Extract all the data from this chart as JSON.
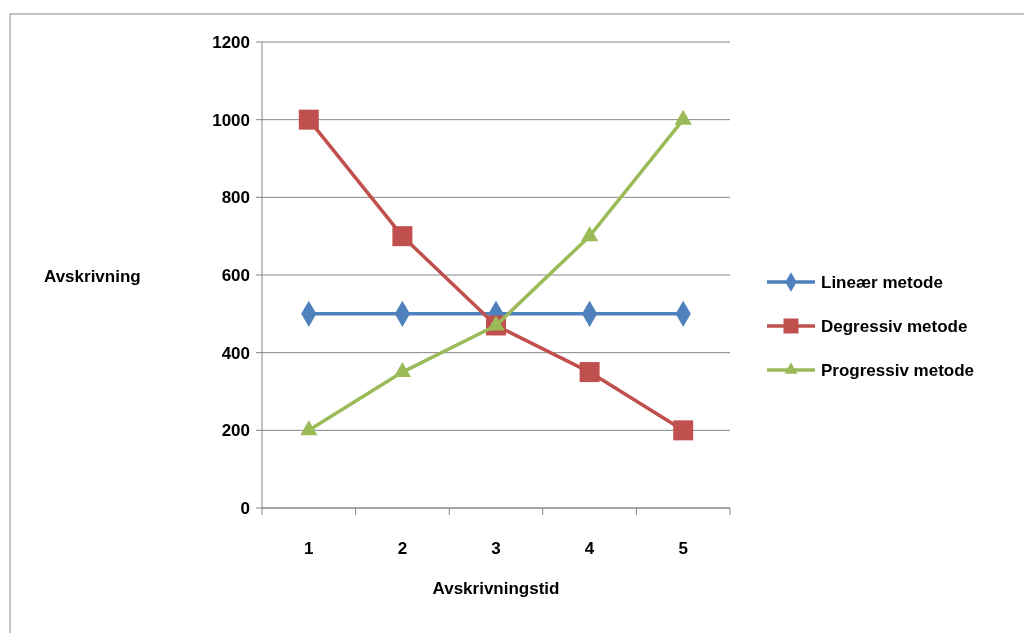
{
  "chart_data": {
    "type": "line",
    "xlabel": "Avskrivningstid",
    "ylabel": "Avskrivning",
    "categories": [
      "1",
      "2",
      "3",
      "4",
      "5"
    ],
    "series": [
      {
        "name": "Lineær metode",
        "color": "#4f81bd",
        "values": [
          500,
          500,
          500,
          500,
          500
        ],
        "marker": "diamond"
      },
      {
        "name": "Degressiv metode",
        "color": "#c0504d",
        "values": [
          1000,
          700,
          470,
          350,
          200
        ],
        "marker": "square"
      },
      {
        "name": "Progressiv metode",
        "color": "#9bbb59",
        "values": [
          200,
          350,
          470,
          700,
          1000
        ],
        "marker": "triangle"
      }
    ],
    "ylim": [
      0,
      1200
    ],
    "yticks": [
      0,
      200,
      400,
      600,
      800,
      1000,
      1200
    ],
    "grid": "y",
    "legend": "right"
  }
}
